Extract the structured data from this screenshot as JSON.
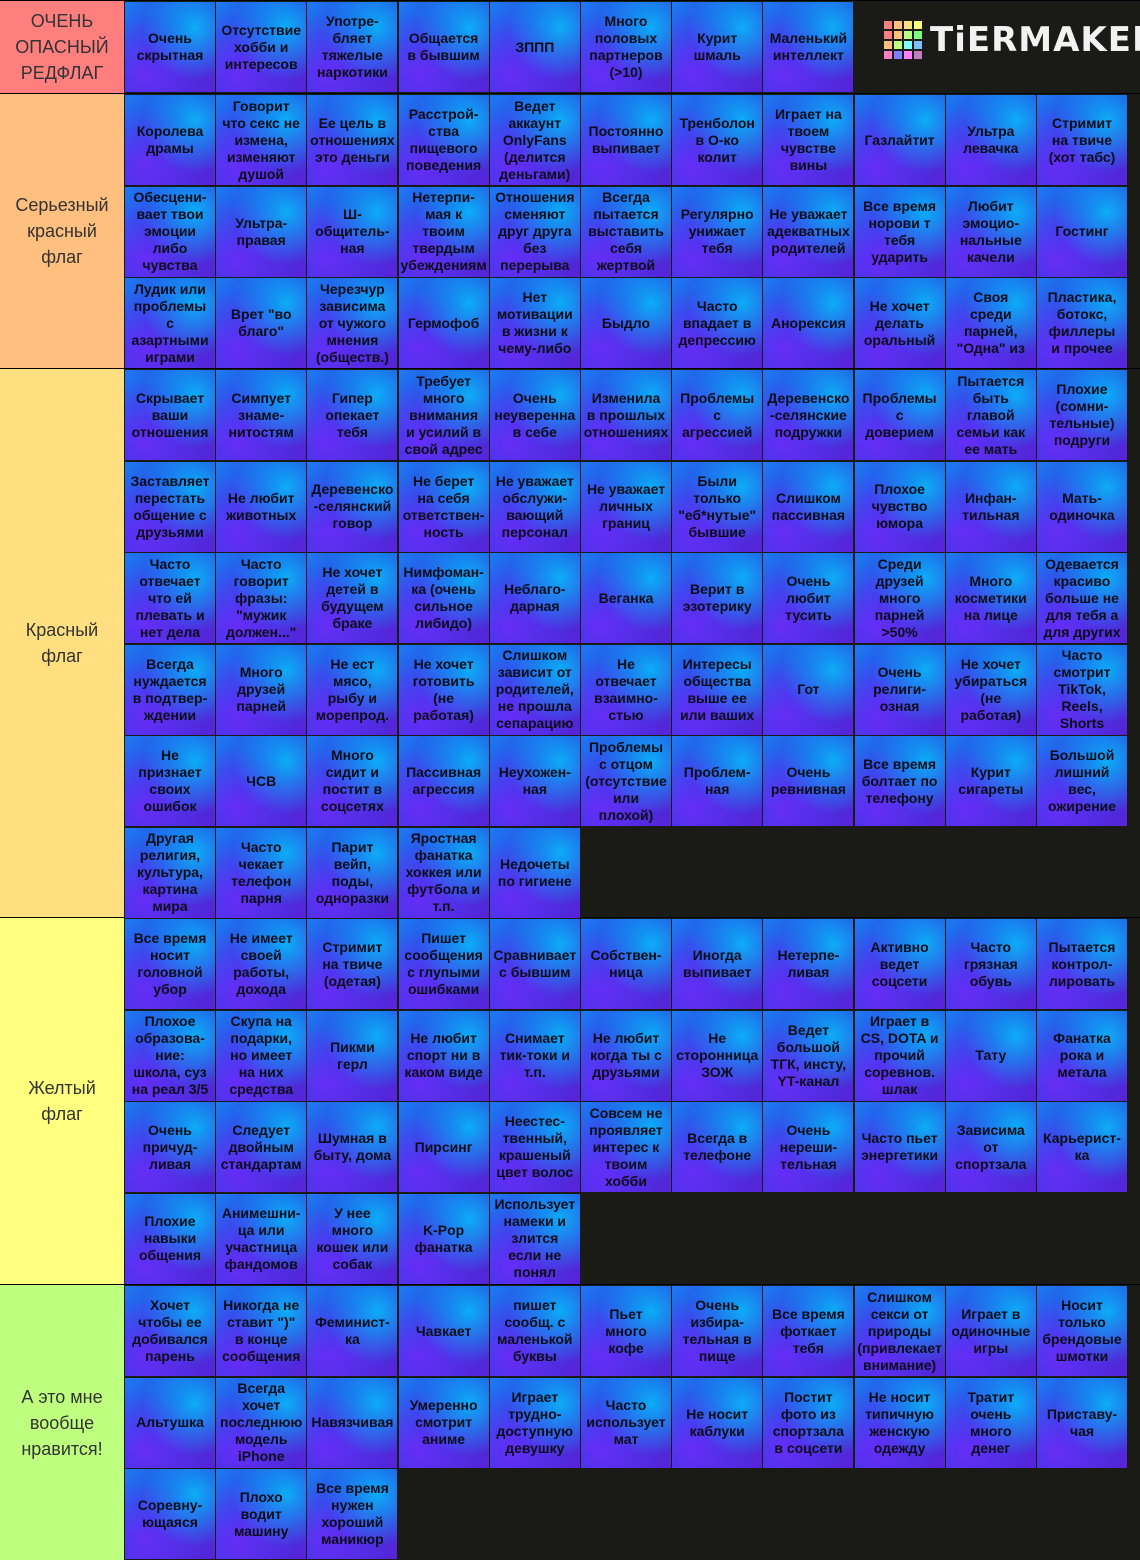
{
  "app": {
    "logo_text": "TiERMAKER"
  },
  "logo_colors": [
    "#ff7f7f",
    "#ffbf7f",
    "#ffdf7f",
    "#ffff7f",
    "#ff7f7f",
    "#ffbf7f",
    "#bfff7f",
    "#7fff7f",
    "#ffbf7f",
    "#bfff7f",
    "#7fffff",
    "#7fbfff",
    "#ff7fbf",
    "#7f7fff",
    "#ff7fff",
    "#bf7fbf"
  ],
  "tiers": [
    {
      "label": "ОЧЕНЬ\nОПАСНЫЙ\nРЕДФЛАГ",
      "color": "#ff7f7f",
      "items": [
        "Очень\nскрытная",
        "Отсутствие\nхобби и\nинтересов",
        "Употре-\nбляет\nтяжелые\nнаркотики",
        "Общается\nв бывшим",
        "ЗППП",
        "Много\nполовых\nпартнеров\n(>10)",
        "Курит\nшмаль",
        "Маленький\nинтеллект"
      ]
    },
    {
      "label": "Серьезный\nкрасный\nфлаг",
      "color": "#ffbf7f",
      "items": [
        "Королева\nдрамы",
        "Говорит\nчто секс не\nизмена,\nизменяют\nдушой",
        "Ее цель в\nотношениях\nэто деньги",
        "Расстрой-\nства\nпищевого\nповедения",
        "Ведет\nаккаунт\nOnlyFans\n(делится\nденьгами)",
        "Постоянно\nвыпивает",
        "Тренболон\nв О-ко\nколит",
        "Играет на\nтвоем\nчувстве\nвины",
        "Газлайтит",
        "Ультра\nлевачка",
        "Стримит\nна твиче\n(хот табс)",
        "Обесцени-\nвает твои\nэмоции\nлибо\nчувства",
        "Ультра-\nправая",
        "Ш-\nобщитель-\nная",
        "Нетерпи-\nмая к\nтвоим\nтвердым\nубеждениям",
        "Отношения\nсменяют\nдруг друга\nбез\nперерыва",
        "Всегда\nпытается\nвыставить\nсебя\nжертвой",
        "Регулярно\nунижает\nтебя",
        "Не уважает\nадекватных\nродителей",
        "Все время\nнорови т\nтебя\nударить",
        "Любит\nэмоцио-\nнальные\nкачели",
        "Гостинг",
        "Лудик или\nпроблемы\nс\nазартными\nиграми",
        "Врет \"во\nблаго\"",
        "Черезчур\nзависима\nот чужого\nмнения\n(обществ.)",
        "Гермофоб",
        "Нет\nмотивации\nв жизни к\nчему-либо",
        "Быдло",
        "Часто\nвпадает в\nдепрессию",
        "Анорексия",
        "Не хочет\nделать\nоральный",
        "Своя\nсреди\nпарней,\n\"Одна\" из",
        "Пластика,\nботокс,\nфиллеры\nи прочее"
      ]
    },
    {
      "label": "Красный\nфлаг",
      "color": "#ffdf7f",
      "items": [
        "Скрывает\nваши\nотношения",
        "Симпует\nзнаме-\nнитостям",
        "Гипер\nопекает\nтебя",
        "Требует\nмного\nвнимания\nи усилий в\nсвой адрес",
        "Очень\nнеуверенна\nв себе",
        "Изменила\nв прошлых\nотношениях",
        "Проблемы\nс\nагрессией",
        "Деревенско\n-селянские\nподружки",
        "Проблемы\nс\nдоверием",
        "Пытается\nбыть\nглавой\nсемьи как\nее мать",
        "Плохие\n(сомни-\nтельные)\nподруги",
        "Заставляет\nперестать\nобщение с\nдрузьями",
        "Не любит\nживотных",
        "Деревенско\n-селянский\nговор",
        "Не берет\nна себя\nответствен-\nность",
        "Не уважает\nобслужи-\nвающий\nперсонал",
        "Не уважает\nличных\nграниц",
        "Были\nтолько\n\"еб*нутые\"\nбывшие",
        "Слишком\nпассивная",
        "Плохое\nчувство\nюмора",
        "Инфан-\nтильная",
        "Мать-\nодиночка",
        "Часто\nотвечает\nчто ей\nплевать и\nнет дела",
        "Часто\nговорит\nфразы:\n\"мужик\nдолжен...\"",
        "Не хочет\nдетей в\nбудущем\nбраке",
        "Нимфоман-\nка (очень\nсильное\nлибидо)",
        "Неблаго-\nдарная",
        "Веганка",
        "Верит в\nэзотерику",
        "Очень\nлюбит\nтусить",
        "Среди\nдрузей\nмного\nпарней\n>50%",
        "Много\nкосметики\nна лице",
        "Одевается\nкрасиво\nбольше не\nдля тебя а\nдля других",
        "Всегда\nнуждается\nв подтвер-\nждении",
        "Много\nдрузей\nпарней",
        "Не ест\nмясо,\nрыбу и\nморепрод.",
        "Не хочет\nготовить\n(не\nработая)",
        "Слишком\nзависит от\nродителей,\nне прошла\nсепарацию",
        "Не\nотвечает\nвзаимно-\nстью",
        "Интересы\nобщества\nвыше ее\nили ваших",
        "Гот",
        "Очень\nрелиги-\nозная",
        "Не хочет\nубираться\n(не\nработая)",
        "Часто\nсмотрит\nTikTok,\nReels,\nShorts",
        "Не\nпризнает\nсвоих\nошибок",
        "ЧСВ",
        "Много\nсидит и\nпостит в\nсоцсетях",
        "Пассивная\nагрессия",
        "Неухожен-\nная",
        "Проблемы\nс отцом\n(отсутствие\nили\nплохой)",
        "Проблем-\nная",
        "Очень\nревнивная",
        "Все время\nболтает по\nтелефону",
        "Курит\nсигареты",
        "Большой\nлишний\nвес,\nожирение",
        "Другая\nрелигия,\nкультура,\nкартина\nмира",
        "Часто\nчекает\nтелефон\nпарня",
        "Парит\nвейп,\nподы,\nодноразки",
        "Яростная\nфанатка\nхоккея или\nфутбола и\nт.п.",
        "Недочеты\nпо гигиене"
      ]
    },
    {
      "label": "Желтый\nфлаг",
      "color": "#ffff7f",
      "items": [
        "Все время\nносит\nголовной\nубор",
        "Не имеет\nсвоей\nработы,\nдохода",
        "Стримит\nна твиче\n(одетая)",
        "Пишет\nсообщения\nс глупыми\nошибками",
        "Сравнивает\nс бывшим",
        "Собствен-\nница",
        "Иногда\nвыпивает",
        "Нетерпе-\nливая",
        "Активно\nведет\nсоцсети",
        "Часто\nгрязная\nобувь",
        "Пытается\nконтрол-\nлировать",
        "Плохое\nобразова-\nние:\nшкола, суз\nна реал 3/5",
        "Скупа на\nподарки,\nно имеет\nна них\nсредства",
        "Пикми\nгерл",
        "Не любит\nспорт ни в\nкаком виде",
        "Снимает\nтик-токи и\nт.п.",
        "Не любит\nкогда ты с\nдрузьями",
        "Не\nсторонница\nЗОЖ",
        "Ведет\nбольшой\nТГК, инсту,\nYT-канал",
        "Играет в\nCS, DOTA и\nпрочий\nсоревнов.\nшлак",
        "Тату",
        "Фанатка\nрока и\nметала",
        "Очень\nпричуд-\nливая",
        "Следует\nдвойным\nстандартам",
        "Шумная в\nбыту, дома",
        "Пирсинг",
        "Неестес-\nтвенный,\nкрашеный\nцвет волос",
        "Совсем не\nпроявляет\nинтерес к\nтвоим\nхобби",
        "Всегда в\nтелефоне",
        "Очень\nнереши-\nтельная",
        "Часто пьет\nэнергетики",
        "Зависима\nот\nспортзала",
        "Карьерист-\nка",
        "Плохие\nнавыки\nобщения",
        "Анимешни-\nца или\nучастница\nфандомов",
        "У нее\nмного\nкошек или\nсобак",
        "K-Pop\nфанатка",
        "Использует\nнамеки и\nзлится\nесли не\nпонял"
      ]
    },
    {
      "label": "А это мне\nвообще\nнравится!",
      "color": "#bfff7f",
      "items": [
        "Хочет\nчтобы ее\nдобивался\nпарень",
        "Никогда не\nставит \")\"\nв конце\nсообщения",
        "Феминист-\nка",
        "Чавкает",
        "пишет\nсообщ. с\nмаленькой\nбуквы",
        "Пьет\nмного\nкофе",
        "Очень\nизбира-\nтельная в\nпище",
        "Все время\nфоткает\nтебя",
        "Слишком\nсекси от\nприроды\n(привлекает\nвнимание)",
        "Играет в\nодиночные\nигры",
        "Носит\nтолько\nбрендовые\nшмотки",
        "Альтушка",
        "Всегда\nхочет\nпоследнюю\nмодель\niPhone",
        "Навязчивая",
        "Умеренно\nсмотрит\nаниме",
        "Играет\nтрудно-\nдоступную\nдевушку",
        "Часто\nиспользует\nмат",
        "Не носит\nкаблуки",
        "Постит\nфото из\nспортзала\nв соцсети",
        "Не носит\nтипичную\nженскую\nодежду",
        "Тратит\nочень\nмного\nденег",
        "Приставу-\nчая",
        "Соревну-\nющаяся",
        "Плохо\nводит\nмашину",
        "Все время\nнужен\nхороший\nманикюр"
      ]
    }
  ]
}
